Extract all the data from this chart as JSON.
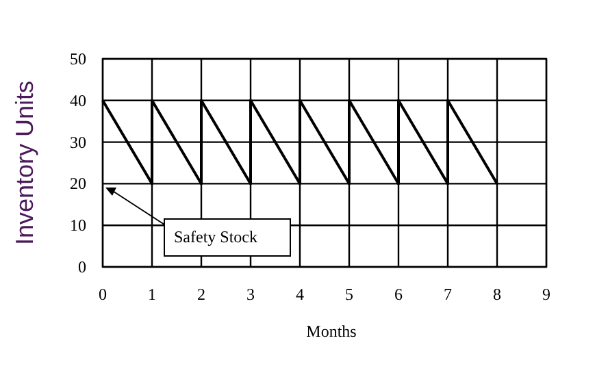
{
  "chart_data": {
    "type": "line",
    "xlabel": "Months",
    "ylabel": "Inventory Units",
    "x": [
      0,
      1,
      1,
      2,
      2,
      3,
      3,
      4,
      4,
      5,
      5,
      6,
      6,
      7,
      7,
      8
    ],
    "series": [
      {
        "color": "#000000",
        "values": [
          40,
          20,
          40,
          20,
          40,
          20,
          40,
          20,
          40,
          20,
          40,
          20,
          40,
          20,
          40,
          20
        ]
      }
    ],
    "xlim": [
      0,
      9
    ],
    "xticks": [
      0,
      1,
      2,
      3,
      4,
      5,
      6,
      7,
      8,
      9
    ],
    "ylim": [
      0,
      50
    ],
    "yticks": [
      0,
      10,
      20,
      30,
      40,
      50
    ],
    "grid": true,
    "marker": "none",
    "line_style": "solid",
    "annotations": [
      "Safety Stock"
    ]
  }
}
